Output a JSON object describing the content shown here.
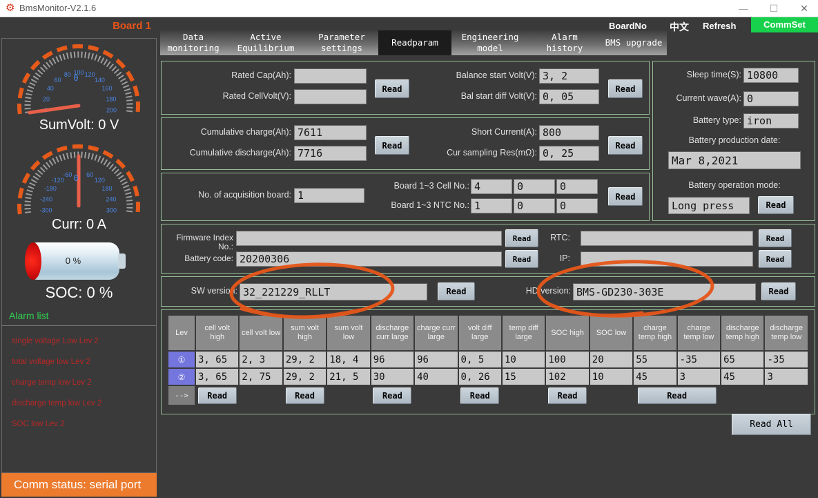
{
  "window": {
    "title": "BmsMonitor-V2.1.6",
    "controls": {
      "minimize": "—",
      "maximize": "☐",
      "close": "✕"
    }
  },
  "topbar": {
    "board_label": "Board 1",
    "board_no": "BoardNo",
    "lang": "中文",
    "refresh": "Refresh",
    "commset": "CommSet"
  },
  "tabs": [
    {
      "label": "Data\nmonitoring",
      "active": false
    },
    {
      "label": "Active\nEquilibrium",
      "active": false
    },
    {
      "label": "Parameter\nsettings",
      "active": false
    },
    {
      "label": "Readparam",
      "active": true
    },
    {
      "label": "Engineering\nmodel",
      "active": false
    },
    {
      "label": "Alarm history",
      "active": false
    },
    {
      "label": "BMS upgrade",
      "active": false
    }
  ],
  "labels": {
    "read": "Read",
    "read_all": "Read All"
  },
  "sidebar": {
    "gauges": [
      {
        "caption": "SumVolt: 0 V",
        "value_text": "0",
        "min": 0,
        "max": 200,
        "step": 20,
        "value": 0
      },
      {
        "caption": "Curr: 0 A",
        "value_text": "0",
        "min": -300,
        "max": 300,
        "step": 60,
        "value": 0
      }
    ],
    "battery": {
      "percent": "0 %",
      "soc_caption": "SOC: 0 %"
    },
    "alarm": {
      "title": "Alarm list",
      "items": [
        "single voltage Low Lev 2",
        "total voltage low Lev 2",
        "charge temp low Lev 2",
        "discharge temp low Lev 2",
        "SOC low Lev 2"
      ]
    },
    "comm_status": "Comm status: serial port"
  },
  "panels": {
    "basic": {
      "fields_left": [
        {
          "label": "Rated Cap(Ah):",
          "value": ""
        },
        {
          "label": "Rated CellVolt(V):",
          "value": ""
        }
      ],
      "fields_right": [
        {
          "label": "Balance start Volt(V):",
          "value": "3, 2"
        },
        {
          "label": "Bal start diff Volt(V):",
          "value": "0, 05"
        }
      ]
    },
    "cumulative": {
      "fields_left": [
        {
          "label": "Cumulative charge(Ah):",
          "value": "7611"
        },
        {
          "label": "Cumulative discharge(Ah):",
          "value": "7716"
        }
      ],
      "fields_right": [
        {
          "label": "Short Current(A):",
          "value": "800"
        },
        {
          "label": "Cur sampling Res(mΩ):",
          "value": "0, 25"
        }
      ]
    },
    "acquisition": {
      "board_label": "No. of acquisition board:",
      "board_value": "1",
      "cell_label": "Board 1~3 Cell No.:",
      "cell_values": [
        "4",
        "0",
        "0"
      ],
      "ntc_label": "Board 1~3 NTC No.:",
      "ntc_values": [
        "1",
        "0",
        "0"
      ]
    },
    "device": {
      "firmware_label": "Firmware Index No.:",
      "firmware_value": "",
      "rtc_label": "RTC:",
      "rtc_value": "",
      "battery_code_label": "Battery code:",
      "battery_code_value": "20200306",
      "ip_label": "IP:",
      "ip_value": ""
    },
    "version": {
      "sw_label": "SW version:",
      "sw_value": "32_221229_RLLT",
      "hd_label": "HD version:",
      "hd_value": "BMS-GD230-303E"
    },
    "right": {
      "fields": [
        {
          "label": "Sleep time(S):",
          "value": "10800"
        },
        {
          "label": "Current wave(A):",
          "value": "0"
        },
        {
          "label": "Battery type:",
          "value": "iron"
        }
      ],
      "production_date_label": "Battery production date:",
      "production_date_value": "Mar 8,2021",
      "operation_mode_label": "Battery operation mode:",
      "operation_mode_value": "Long press"
    }
  },
  "table": {
    "headers": [
      "Lev",
      "cell volt high",
      "cell volt low",
      "sum volt high",
      "sum volt low",
      "discharge curr large",
      "charge curr large",
      "volt diff large",
      "temp diff large",
      "SOC high",
      "SOC low",
      "charge temp high",
      "charge temp low",
      "discharge temp high",
      "discharge temp low"
    ],
    "rows": [
      {
        "lev": "①",
        "values": [
          "3, 65",
          "2, 3",
          "29, 2",
          "18, 4",
          "96",
          "96",
          "0, 5",
          "10",
          "100",
          "20",
          "55",
          "-35",
          "65",
          "-35"
        ]
      },
      {
        "lev": "②",
        "values": [
          "3, 65",
          "2, 75",
          "29, 2",
          "21, 5",
          "30",
          "40",
          "0, 26",
          "15",
          "102",
          "10",
          "45",
          "3",
          "45",
          "3"
        ]
      }
    ],
    "footer": {
      "arrow": "-->"
    }
  }
}
